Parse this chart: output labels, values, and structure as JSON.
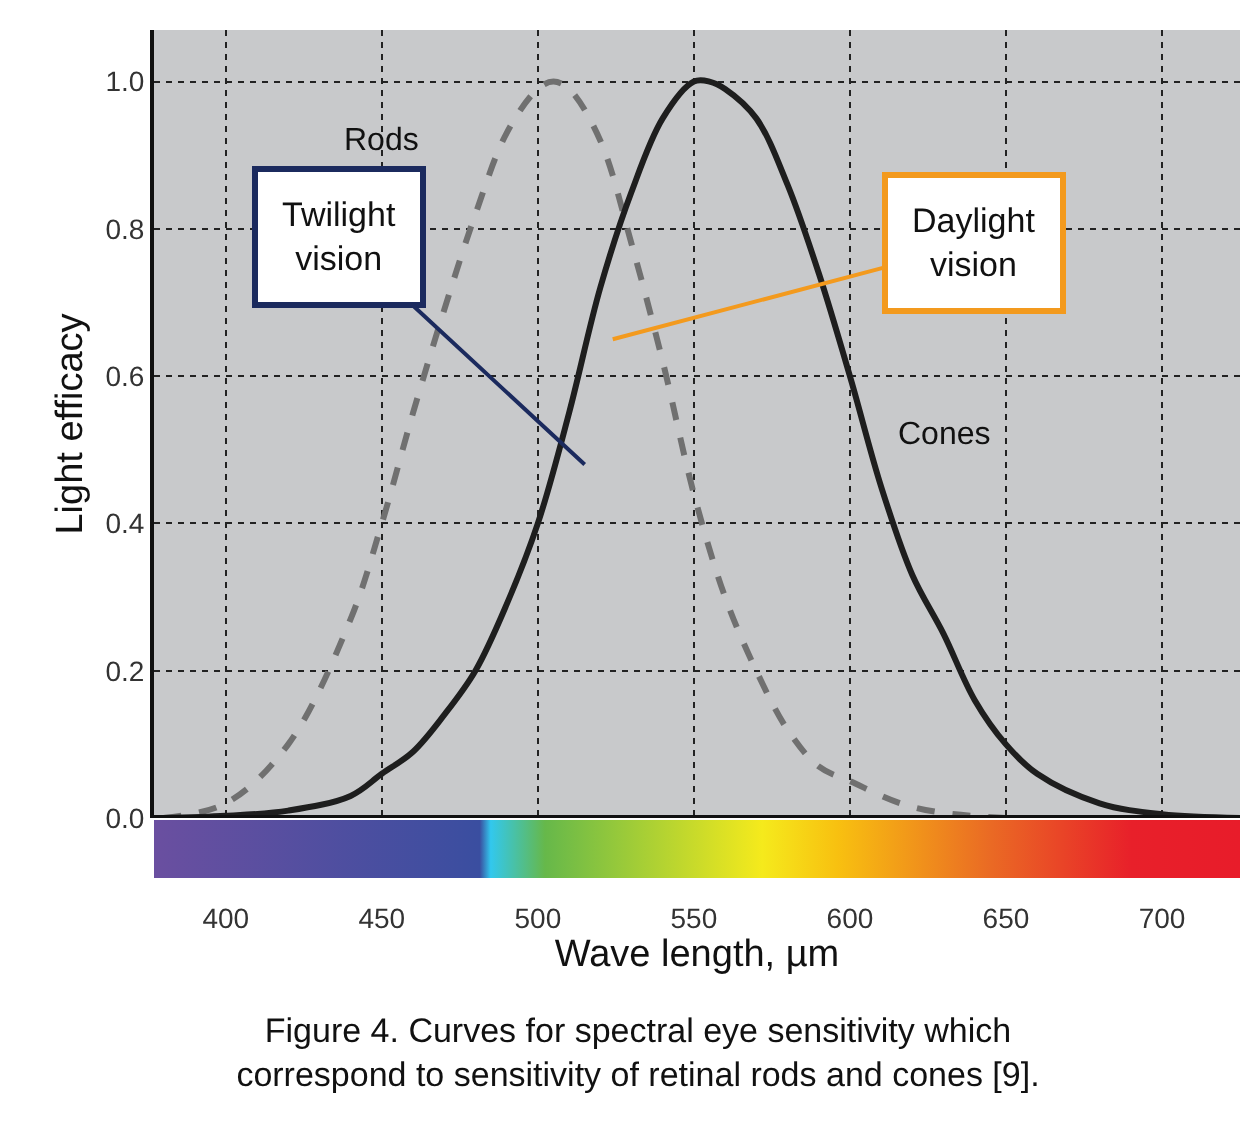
{
  "chart_data": {
    "type": "line",
    "xlabel": "Wave length, µm",
    "ylabel": "Light efficacy",
    "xlim": [
      377,
      725
    ],
    "ylim": [
      0,
      1.07
    ],
    "xticks": [
      400,
      450,
      500,
      550,
      600,
      650,
      700
    ],
    "yticks": [
      {
        "value": 0,
        "label": "0.0"
      },
      {
        "value": 0.2,
        "label": "0.2"
      },
      {
        "value": 0.4,
        "label": "0.4"
      },
      {
        "value": 0.6,
        "label": "0.6"
      },
      {
        "value": 0.8,
        "label": "0.8"
      },
      {
        "value": 1,
        "label": "1.0"
      }
    ],
    "grid": true,
    "legend": false,
    "marker": "none",
    "series": [
      {
        "name": "Rods",
        "color": "#707070",
        "line_style": "dashed",
        "x": [
          380,
          400,
          420,
          440,
          450,
          460,
          470,
          480,
          490,
          500,
          505,
          510,
          520,
          530,
          540,
          550,
          560,
          570,
          580,
          590,
          600,
          620,
          650,
          700,
          725
        ],
        "values": [
          0,
          0.02,
          0.1,
          0.27,
          0.4,
          0.55,
          0.69,
          0.82,
          0.93,
          0.99,
          1.0,
          0.99,
          0.92,
          0.78,
          0.62,
          0.44,
          0.3,
          0.2,
          0.12,
          0.07,
          0.05,
          0.015,
          0,
          0,
          0
        ]
      },
      {
        "name": "Cones",
        "color": "#1e1e1e",
        "line_style": "solid",
        "x": [
          380,
          400,
          420,
          440,
          450,
          460,
          470,
          480,
          490,
          500,
          510,
          520,
          530,
          540,
          550,
          555,
          560,
          570,
          580,
          590,
          600,
          610,
          620,
          630,
          640,
          650,
          660,
          680,
          700,
          725
        ],
        "values": [
          0,
          0.003,
          0.01,
          0.03,
          0.06,
          0.09,
          0.14,
          0.2,
          0.29,
          0.4,
          0.55,
          0.72,
          0.85,
          0.95,
          1.0,
          1.0,
          0.99,
          0.95,
          0.86,
          0.74,
          0.6,
          0.45,
          0.33,
          0.25,
          0.16,
          0.1,
          0.06,
          0.02,
          0.005,
          0
        ]
      }
    ],
    "annotations": [
      "Twilight vision",
      "Daylight vision",
      "Figure 4. Curves for spectral eye sensitivity which correspond to sensitivity of retinal rods and cones [9]."
    ]
  }
}
